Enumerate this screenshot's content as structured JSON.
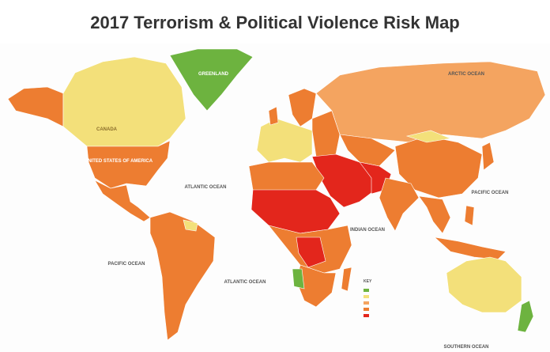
{
  "header": {
    "title": "2017 Terrorism & Political Violence Risk Map"
  },
  "labels": {
    "oceans": [
      "ARCTIC OCEAN",
      "ATLANTIC OCEAN",
      "PACIFIC OCEAN",
      "INDIAN OCEAN",
      "ATLANTIC OCEAN",
      "PACIFIC OCEAN",
      "SOUTHERN OCEAN"
    ],
    "countries": [
      "GREENLAND",
      "CANADA",
      "UNITED STATES OF AMERICA"
    ],
    "key": "KEY"
  }
}
